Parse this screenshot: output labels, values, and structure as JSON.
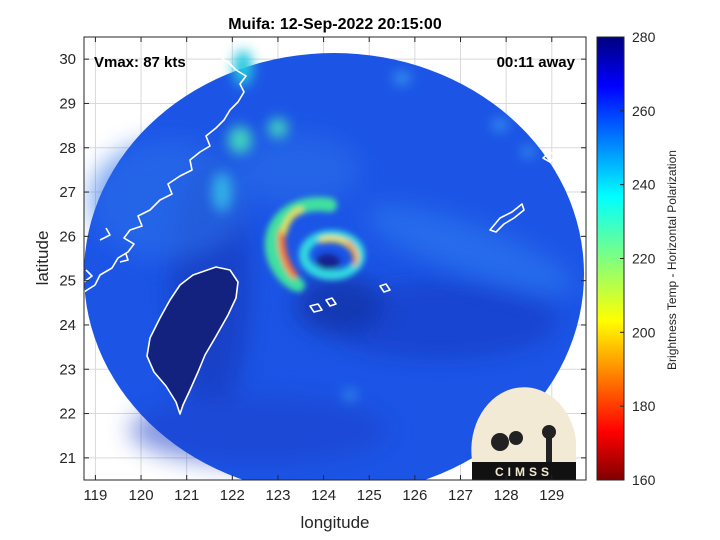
{
  "chart_data": {
    "type": "heatmap",
    "title": "Muifa: 12-Sep-2022 20:15:00",
    "xlabel": "longitude",
    "ylabel": "latitude",
    "xlim": [
      118.75,
      129.75
    ],
    "ylim": [
      20.5,
      30.5
    ],
    "xticks": [
      119,
      120,
      121,
      122,
      123,
      124,
      125,
      126,
      127,
      128,
      129
    ],
    "yticks": [
      21,
      22,
      23,
      24,
      25,
      26,
      27,
      28,
      29,
      30
    ],
    "grid": true,
    "annotations": {
      "vmax": "Vmax: 87 kts",
      "time_offset": "00:11 away"
    },
    "colorbar": {
      "label": "Brightness Temp - Horizontal Polarization",
      "range": [
        160,
        280
      ],
      "ticks": [
        160,
        180,
        200,
        220,
        240,
        260,
        280
      ],
      "colormap": "jet"
    },
    "storm_center": [
      124.3,
      25.4
    ],
    "swath_center": [
      124.3,
      25.0
    ],
    "swath_radius_deg": 5.5
  },
  "logo": {
    "text": "CIMSS"
  },
  "colors": {
    "background_swath": "#1c55e6",
    "eye": "#12248e",
    "coast": "#ffffff"
  }
}
